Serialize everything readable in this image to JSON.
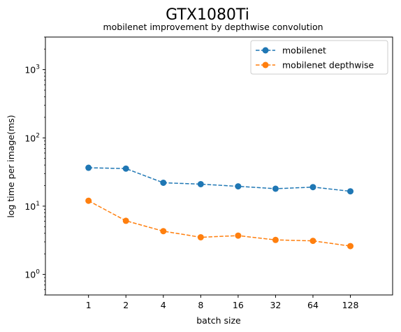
{
  "chart_data": {
    "type": "line",
    "title": "GTX1080Ti",
    "subtitle": "mobilenet improvement by depthwise convolution",
    "xlabel": "batch size",
    "ylabel": "log time per image(ms)",
    "x_scale": "log2",
    "y_scale": "log",
    "categories": [
      "1",
      "2",
      "4",
      "8",
      "16",
      "32",
      "64",
      "128"
    ],
    "x": [
      1,
      2,
      4,
      8,
      16,
      32,
      64,
      128
    ],
    "xlim": [
      0.45,
      280
    ],
    "ylim": [
      0.5,
      3000
    ],
    "y_ticks": [
      {
        "value": 1,
        "label_base": "10",
        "label_exp": "0"
      },
      {
        "value": 10,
        "label_base": "10",
        "label_exp": "1"
      },
      {
        "value": 100,
        "label_base": "10",
        "label_exp": "2"
      },
      {
        "value": 1000,
        "label_base": "10",
        "label_exp": "3"
      }
    ],
    "grid": false,
    "legend_position": "top-right",
    "series": [
      {
        "name": "mobilenet",
        "color": "#1f77b4",
        "line_style": "dashed",
        "marker": "circle",
        "values": [
          36.5,
          35.5,
          22,
          21,
          19.5,
          18,
          19,
          16.5
        ]
      },
      {
        "name": "mobilenet depthwise",
        "color": "#ff7f0e",
        "line_style": "dashed",
        "marker": "circle",
        "values": [
          12,
          6.1,
          4.3,
          3.5,
          3.7,
          3.2,
          3.1,
          2.6
        ]
      }
    ]
  }
}
